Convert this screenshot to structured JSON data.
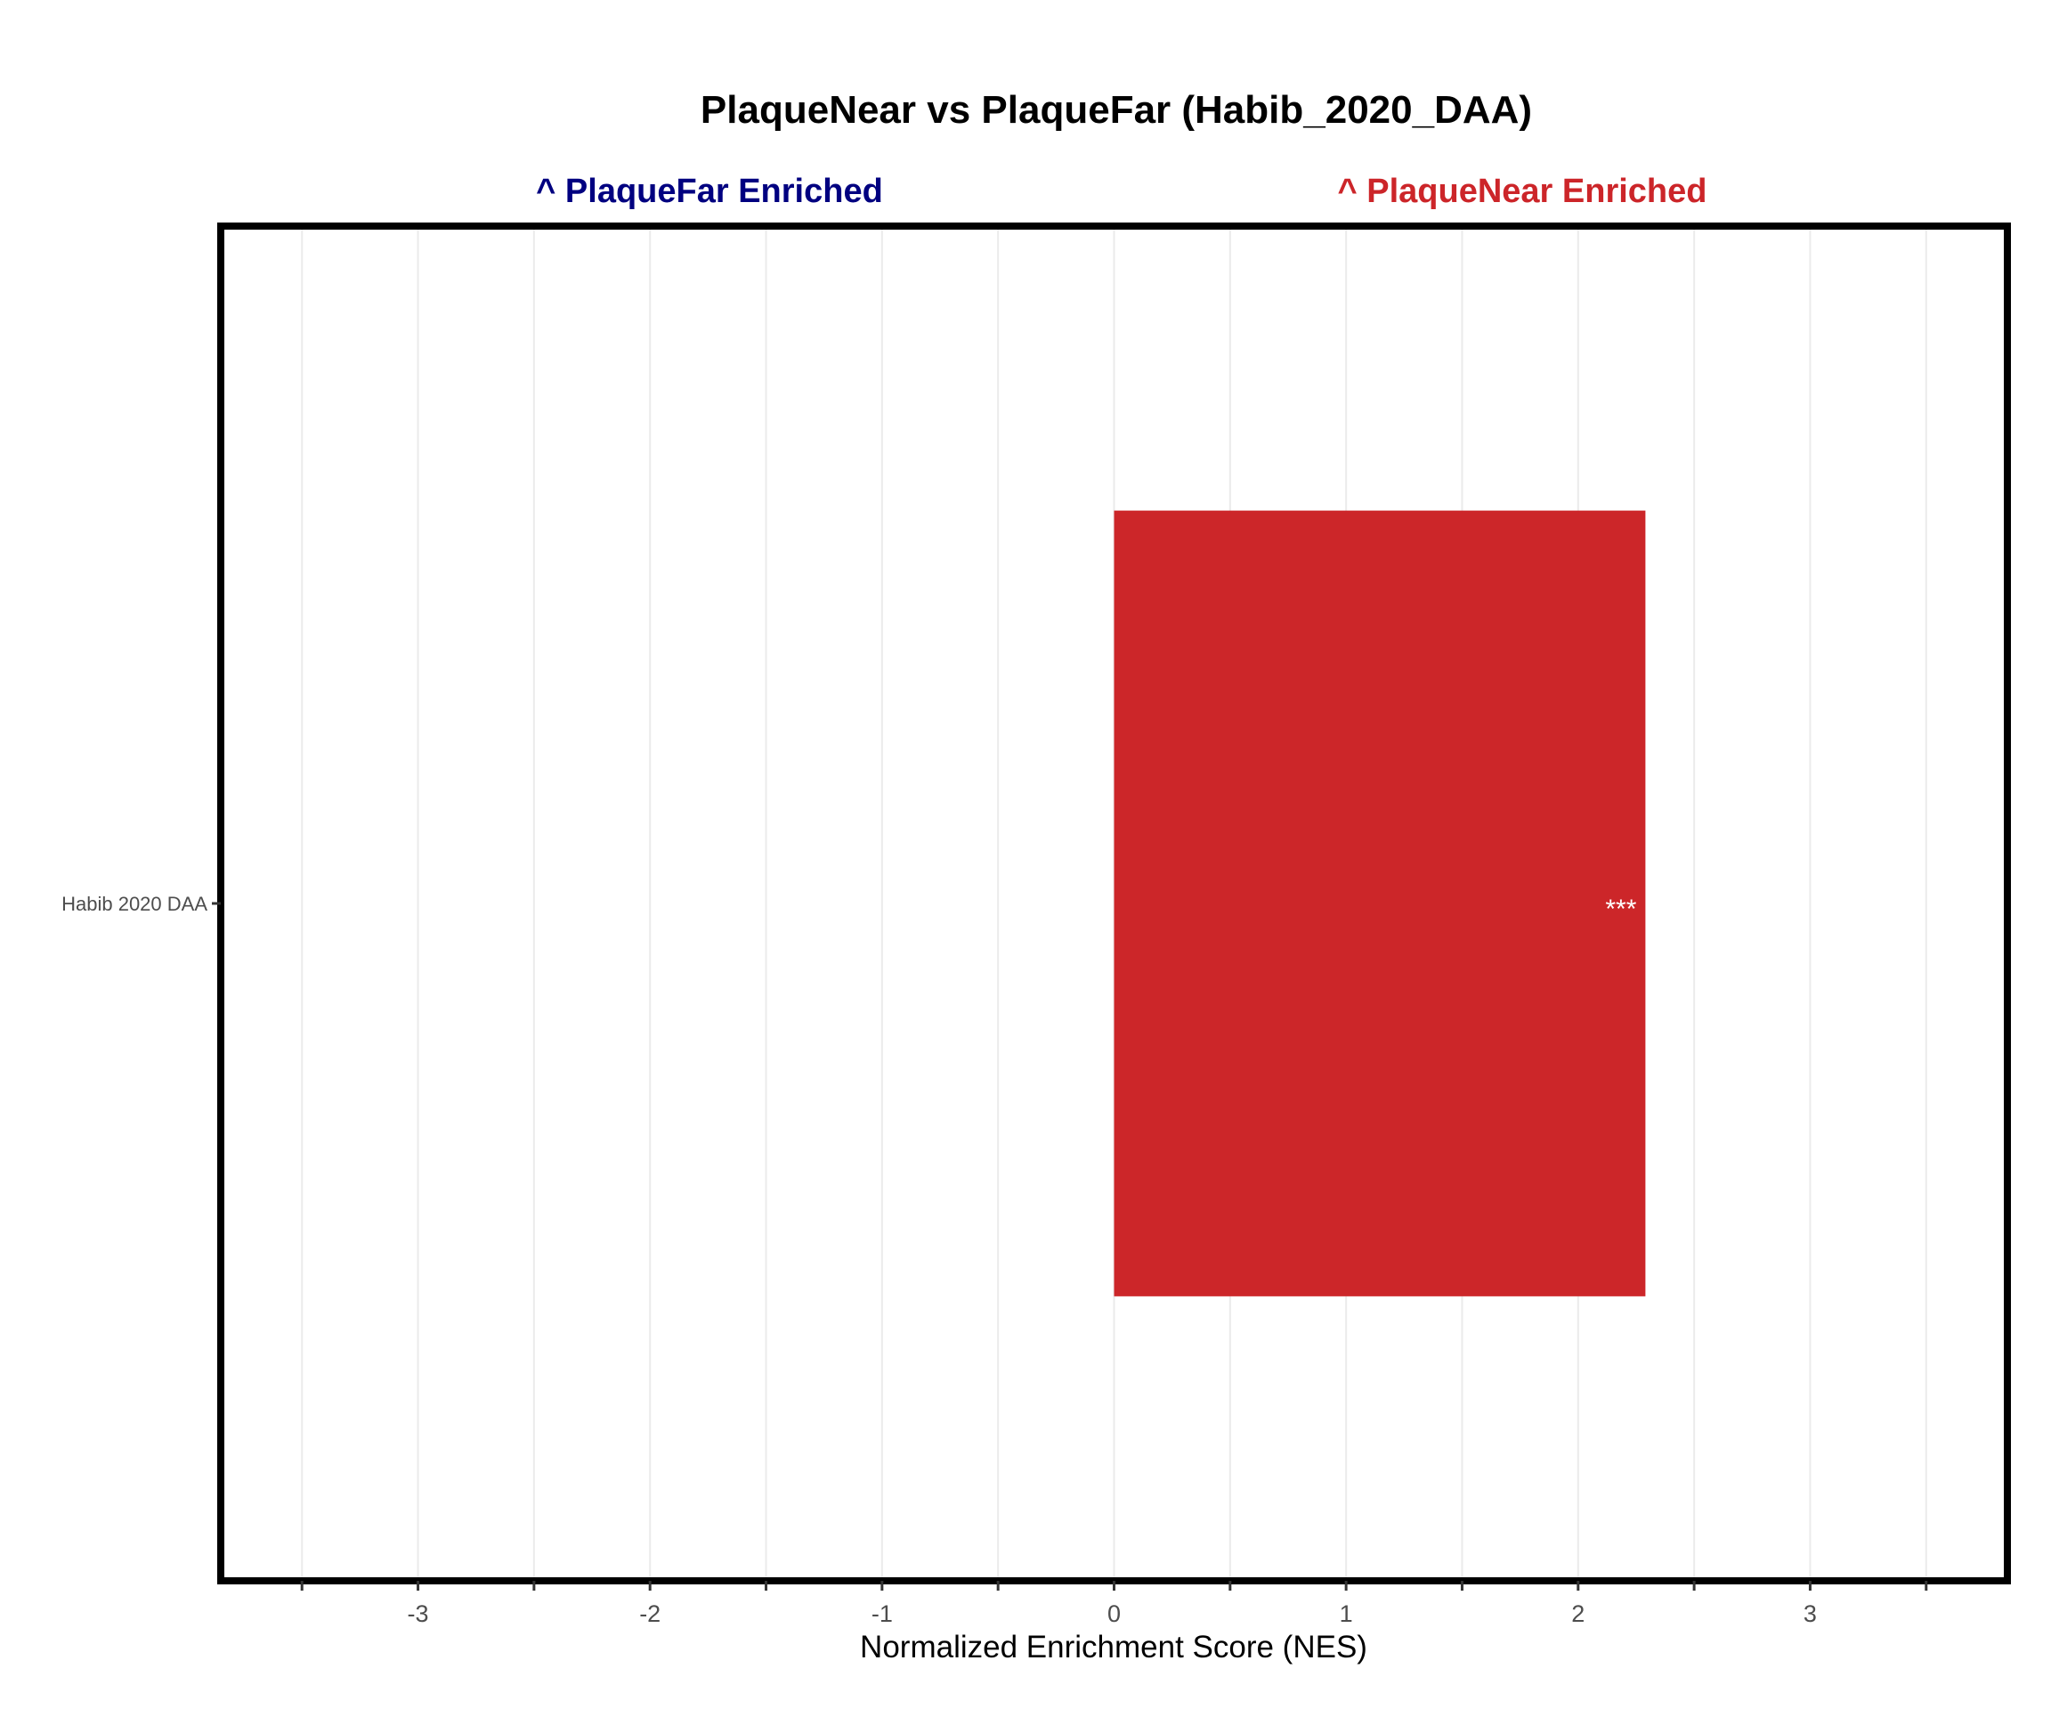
{
  "chart_data": {
    "type": "bar",
    "orientation": "horizontal",
    "title": "PlaqueNear vs PlaqueFar (Habib_2020_DAA)",
    "annotations": {
      "left": {
        "text": "^ PlaqueFar Enriched",
        "color": "#000080"
      },
      "right": {
        "text": "^ PlaqueNear Enriched",
        "color": "#cc2529"
      }
    },
    "categories": [
      "Habib 2020 DAA"
    ],
    "values": [
      2.29
    ],
    "bar_colors": [
      "#cc2629"
    ],
    "significance": [
      "***"
    ],
    "xlabel": "Normalized Enrichment Score (NES)",
    "ylabel": "",
    "xlim": [
      -3.85,
      3.85
    ],
    "xticks": [
      -3,
      -2,
      -1,
      0,
      1,
      2,
      3
    ],
    "xtick_labels": [
      "-3",
      "-2",
      "-1",
      "0",
      "1",
      "2",
      "3"
    ],
    "minor_xticks": [
      -3.5,
      -2.5,
      -1.5,
      -0.5,
      0.5,
      1.5,
      2.5,
      3.5
    ],
    "grid": true
  }
}
